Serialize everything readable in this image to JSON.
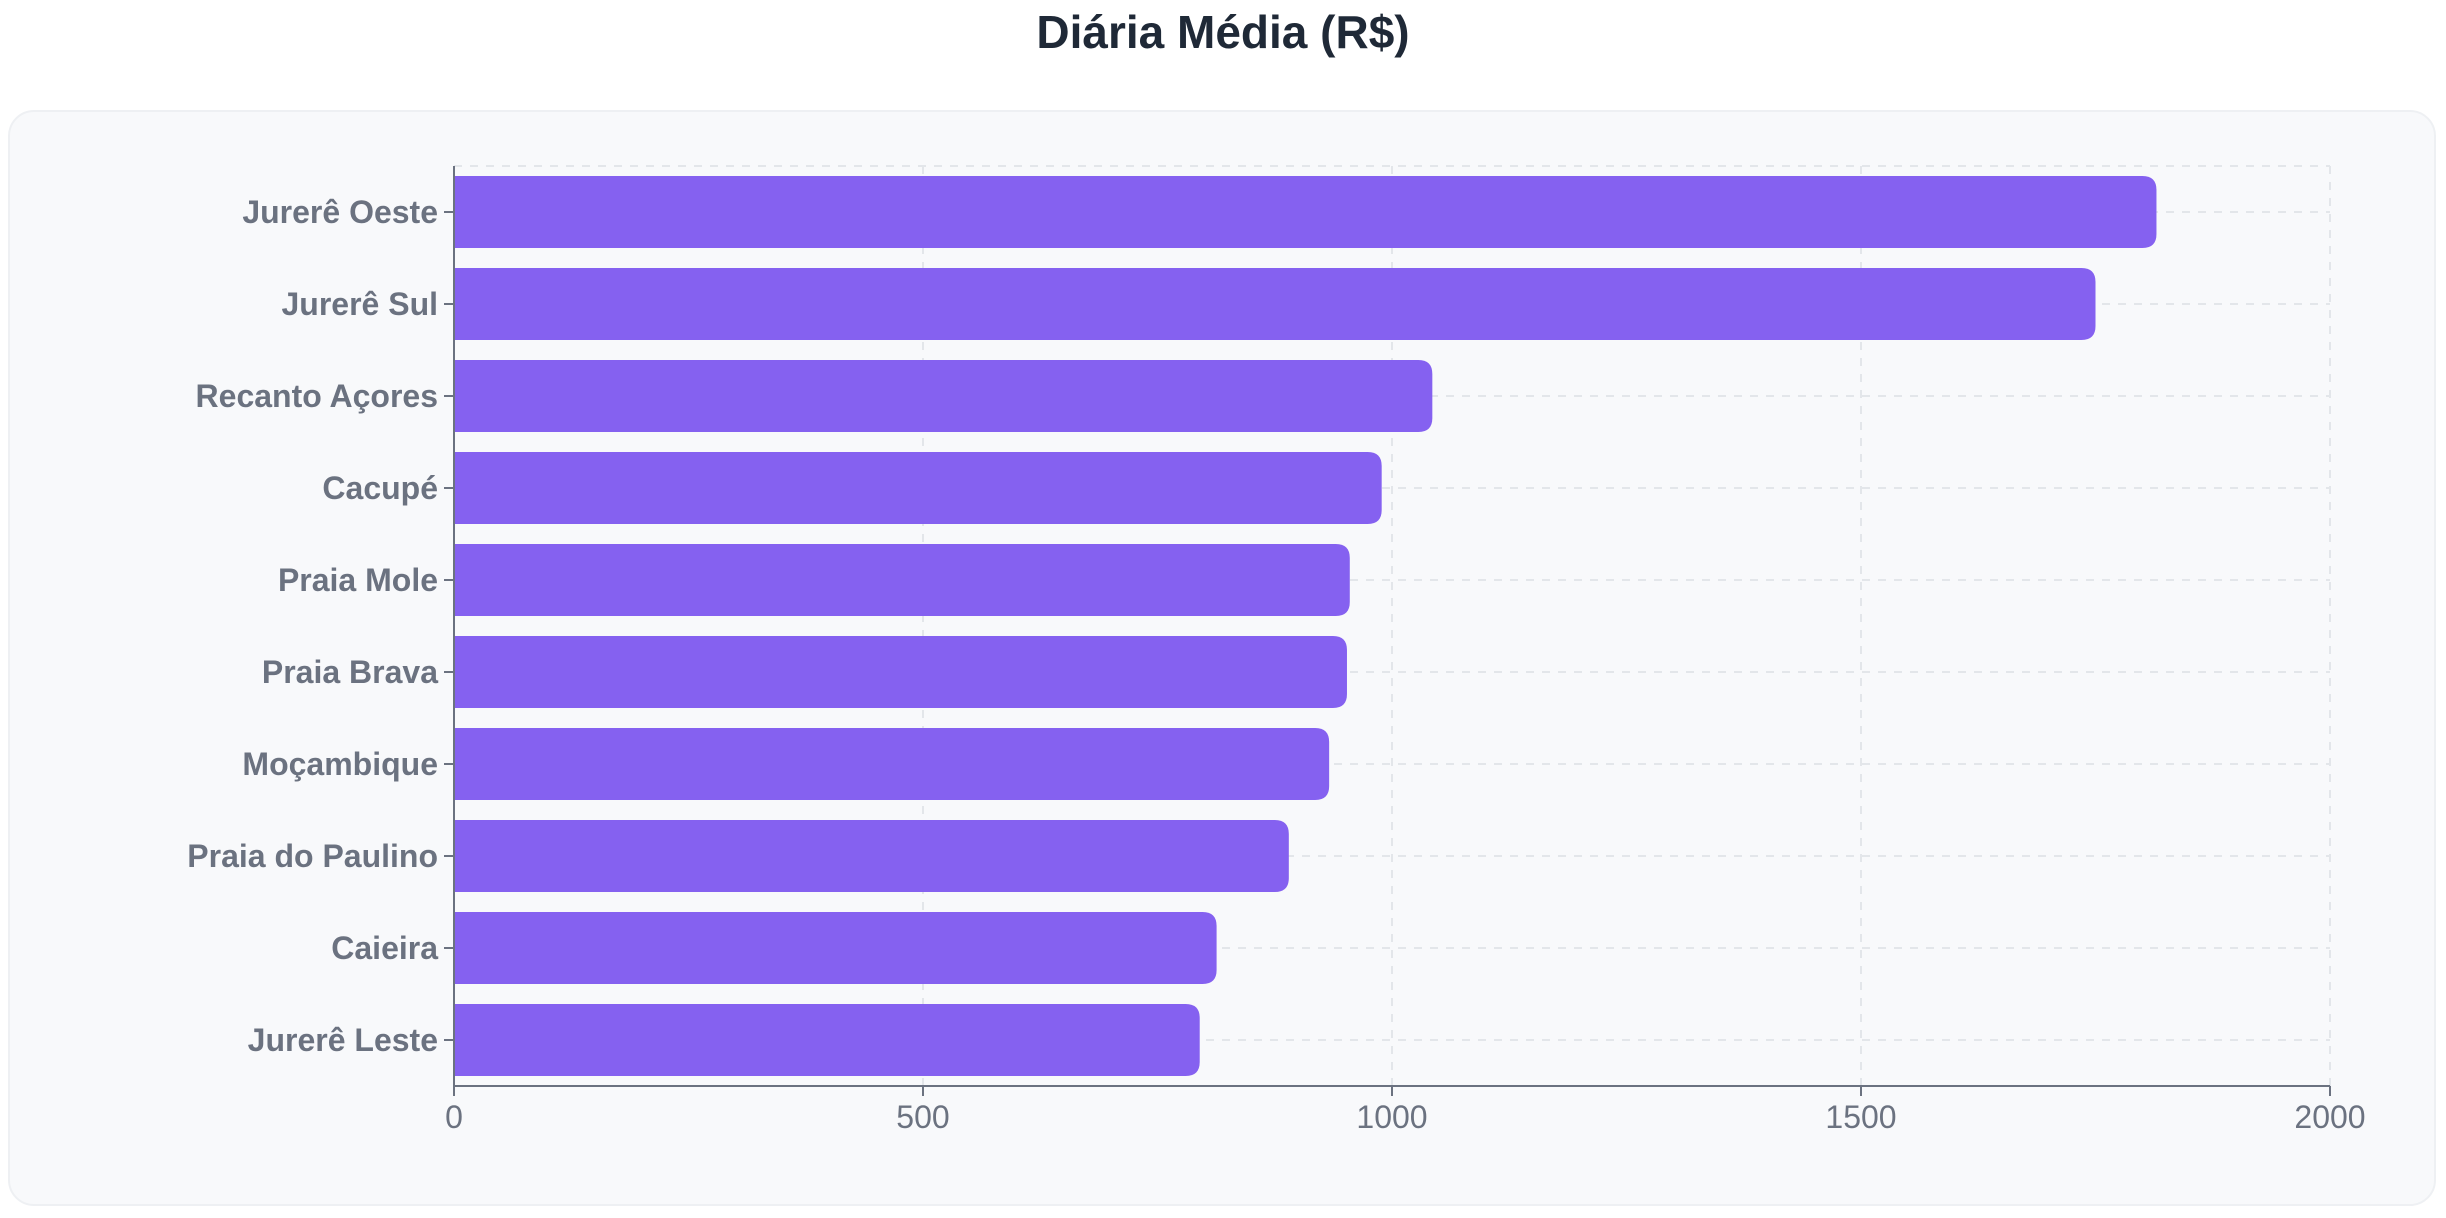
{
  "chart_data": {
    "type": "bar",
    "orientation": "horizontal",
    "title": "Diária Média (R$)",
    "xlabel": "",
    "ylabel": "",
    "xlim": [
      0,
      2000
    ],
    "x_ticks": [
      0,
      500,
      1000,
      1500,
      2000
    ],
    "grid": true,
    "legend": "none",
    "bar_color": "#8561f0",
    "categories": [
      "Jurerê Oeste",
      "Jurerê Sul",
      "Recanto Açores",
      "Cacupé",
      "Praia Mole",
      "Praia Brava",
      "Moçambique",
      "Praia do Paulino",
      "Caieira",
      "Jurerê Leste"
    ],
    "values": [
      1815,
      1750,
      1043,
      989,
      955,
      952,
      933,
      890,
      813,
      795
    ]
  }
}
